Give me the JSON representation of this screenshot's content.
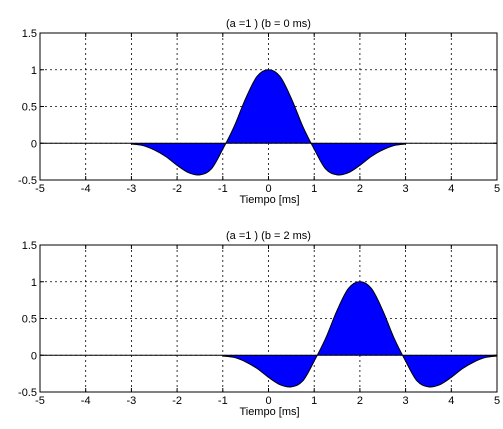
{
  "chart_data": [
    {
      "type": "area",
      "title": "(a =1 ) (b = 0 ms)",
      "xlabel": "Tiempo [ms]",
      "ylabel": "",
      "xlim": [
        -5,
        5
      ],
      "ylim": [
        -0.5,
        1.5
      ],
      "xticks": [
        -5,
        -4,
        -3,
        -2,
        -1,
        0,
        1,
        2,
        3,
        4,
        5
      ],
      "yticks": [
        -0.5,
        0,
        0.5,
        1,
        1.5
      ],
      "grid": true,
      "fill_color": "#0000ff",
      "line_color": "#000000",
      "series": [
        {
          "x": [
            -3,
            -2.75,
            -2.5,
            -2.25,
            -2,
            -1.75,
            -1.5,
            -1.25,
            -1,
            -0.75,
            -0.5,
            -0.25,
            0,
            0.25,
            0.5,
            0.75,
            1,
            1.25,
            1.5,
            1.75,
            2,
            2.25,
            2.5,
            2.75,
            3
          ],
          "y": [
            -0.01,
            -0.03,
            -0.09,
            -0.18,
            -0.3,
            -0.4,
            -0.43,
            -0.35,
            -0.08,
            0.23,
            0.61,
            0.91,
            1.0,
            0.91,
            0.61,
            0.23,
            -0.08,
            -0.35,
            -0.43,
            -0.4,
            -0.3,
            -0.18,
            -0.09,
            -0.03,
            -0.01
          ]
        }
      ]
    },
    {
      "type": "area",
      "title": "(a =1 ) (b = 2 ms)",
      "xlabel": "Tiempo [ms]",
      "ylabel": "",
      "xlim": [
        -5,
        5
      ],
      "ylim": [
        -0.5,
        1.5
      ],
      "xticks": [
        -5,
        -4,
        -3,
        -2,
        -1,
        0,
        1,
        2,
        3,
        4,
        5
      ],
      "yticks": [
        -0.5,
        0,
        0.5,
        1,
        1.5
      ],
      "grid": true,
      "fill_color": "#0000ff",
      "line_color": "#000000",
      "series": [
        {
          "x": [
            -1,
            -0.75,
            -0.5,
            -0.25,
            0,
            0.25,
            0.5,
            0.75,
            1,
            1.25,
            1.5,
            1.75,
            2,
            2.25,
            2.5,
            2.75,
            3,
            3.25,
            3.5,
            3.75,
            4,
            4.25,
            4.5,
            4.75,
            5
          ],
          "y": [
            -0.01,
            -0.03,
            -0.09,
            -0.18,
            -0.3,
            -0.4,
            -0.43,
            -0.35,
            -0.08,
            0.23,
            0.61,
            0.91,
            1.0,
            0.91,
            0.61,
            0.23,
            -0.08,
            -0.35,
            -0.43,
            -0.4,
            -0.3,
            -0.18,
            -0.09,
            -0.03,
            -0.01
          ]
        }
      ]
    }
  ]
}
